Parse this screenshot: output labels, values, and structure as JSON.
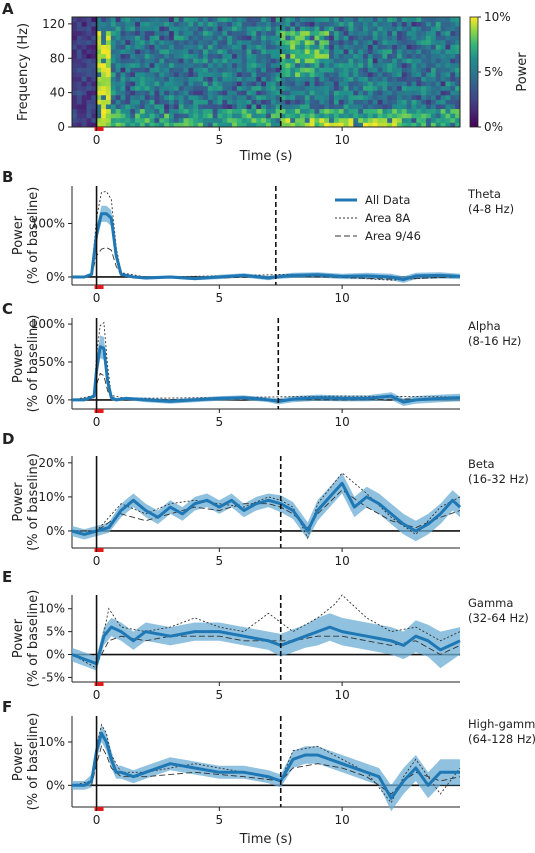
{
  "figure": {
    "shared_xlabel": "Time (s)",
    "shared_ylabel": [
      "Power",
      "(% of baseline)"
    ],
    "colors": {
      "all_data": "#1f77b4",
      "sem_band": "#6baed6",
      "area_lines": "#333333",
      "event_marker": "#e31a1c"
    }
  },
  "chart_data": [
    {
      "type": "heatmap",
      "panel": "A",
      "xlabel": "Time (s)",
      "ylabel": "Frequency (Hz)",
      "xlim": [
        -1,
        14.8
      ],
      "ylim": [
        0,
        128
      ],
      "xticks": [
        0,
        5,
        10
      ],
      "yticks": [
        0,
        40,
        80,
        120
      ],
      "colorbar": {
        "label": "Power",
        "ticks": [
          "0%",
          "5%",
          "10%"
        ],
        "colormap": "viridis",
        "range": [
          0,
          10
        ]
      },
      "events": [
        {
          "x": 0,
          "style": "solid"
        },
        {
          "x": 7.5,
          "style": "dashed"
        }
      ]
    },
    {
      "type": "line",
      "panel": "B",
      "band_label": [
        "Theta",
        "(4-8 Hz)"
      ],
      "xlim": [
        -1,
        14.8
      ],
      "ylim": [
        -15,
        170
      ],
      "xticks": [
        0,
        5,
        10
      ],
      "yticks": [
        0,
        100
      ],
      "ytick_labels": [
        "0%",
        "100%"
      ],
      "legend": {
        "placement": "top-right",
        "entries": [
          "All Data",
          "Area 8A",
          "Area 9/46"
        ]
      },
      "events": [
        {
          "x": 0,
          "style": "solid"
        },
        {
          "x": 7.3,
          "style": "dashed"
        }
      ],
      "series": [
        {
          "name": "All Data",
          "x": [
            -1,
            -0.5,
            -0.2,
            0,
            0.2,
            0.4,
            0.6,
            0.8,
            1.0,
            1.5,
            2,
            3,
            4,
            5,
            6,
            7,
            7.3,
            8,
            9,
            10,
            11,
            12,
            12.5,
            13,
            14,
            14.8
          ],
          "y": [
            0,
            0,
            5,
            80,
            118,
            118,
            110,
            40,
            5,
            0,
            -2,
            0,
            -3,
            0,
            3,
            -2,
            0,
            3,
            4,
            1,
            2,
            0,
            -5,
            2,
            3,
            1
          ],
          "sem": [
            1,
            1,
            3,
            15,
            15,
            15,
            15,
            10,
            3,
            2,
            3,
            3,
            3,
            4,
            4,
            4,
            4,
            5,
            5,
            5,
            6,
            6,
            6,
            6,
            6,
            5
          ]
        },
        {
          "name": "Area 8A",
          "x": [
            -1,
            -0.5,
            -0.2,
            0,
            0.2,
            0.4,
            0.6,
            0.8,
            1.0,
            2,
            5,
            8,
            12,
            14.8
          ],
          "y": [
            0,
            0,
            8,
            110,
            158,
            160,
            145,
            55,
            8,
            0,
            2,
            5,
            -6,
            2
          ]
        },
        {
          "name": "Area 9/46",
          "x": [
            -1,
            -0.5,
            -0.2,
            0,
            0.2,
            0.4,
            0.6,
            0.8,
            1.0,
            2,
            5,
            8,
            12,
            14.8
          ],
          "y": [
            0,
            0,
            4,
            40,
            52,
            55,
            50,
            20,
            3,
            0,
            -2,
            2,
            -4,
            0
          ]
        }
      ]
    },
    {
      "type": "line",
      "panel": "C",
      "band_label": [
        "Alpha",
        "(8-16 Hz)"
      ],
      "xlim": [
        -1,
        14.8
      ],
      "ylim": [
        -12,
        108
      ],
      "xticks": [
        0,
        5,
        10
      ],
      "yticks": [
        0,
        50,
        100
      ],
      "ytick_labels": [
        "0%",
        "50%",
        "100%"
      ],
      "events": [
        {
          "x": 0,
          "style": "solid"
        },
        {
          "x": 7.4,
          "style": "dashed"
        }
      ],
      "series": [
        {
          "name": "All Data",
          "x": [
            -1,
            -0.5,
            -0.1,
            0,
            0.15,
            0.3,
            0.45,
            0.6,
            0.8,
            1.2,
            2,
            3,
            4,
            5,
            6,
            7,
            7.4,
            8,
            9,
            10,
            11,
            12,
            12.5,
            13,
            14,
            14.8
          ],
          "y": [
            0,
            0,
            5,
            40,
            70,
            68,
            25,
            3,
            0,
            2,
            0,
            -2,
            0,
            2,
            3,
            0,
            -2,
            1,
            3,
            2,
            2,
            5,
            -3,
            0,
            2,
            3
          ],
          "sem": [
            1,
            1,
            3,
            15,
            15,
            15,
            10,
            3,
            2,
            2,
            3,
            3,
            3,
            3,
            3,
            3,
            4,
            4,
            4,
            4,
            4,
            5,
            5,
            5,
            5,
            5
          ]
        },
        {
          "name": "Area 8A",
          "x": [
            -1,
            -0.1,
            0,
            0.15,
            0.3,
            0.45,
            0.6,
            1.2,
            5,
            10,
            14.8
          ],
          "y": [
            0,
            6,
            60,
            98,
            102,
            45,
            6,
            2,
            3,
            5,
            4
          ]
        },
        {
          "name": "Area 9/46",
          "x": [
            -1,
            -0.1,
            0,
            0.15,
            0.3,
            0.45,
            0.6,
            1.2,
            5,
            10,
            14.8
          ],
          "y": [
            0,
            3,
            20,
            35,
            32,
            12,
            2,
            0,
            1,
            0,
            2
          ]
        }
      ]
    },
    {
      "type": "line",
      "panel": "D",
      "band_label": [
        "Beta",
        "(16-32 Hz)"
      ],
      "xlim": [
        -1,
        14.8
      ],
      "ylim": [
        -5,
        22
      ],
      "xticks": [
        0,
        5,
        10
      ],
      "yticks": [
        0,
        10,
        20
      ],
      "ytick_labels": [
        "0%",
        "10%",
        "20%"
      ],
      "events": [
        {
          "x": 0,
          "style": "solid"
        },
        {
          "x": 7.5,
          "style": "dashed"
        }
      ],
      "series": [
        {
          "name": "All Data",
          "x": [
            -1,
            -0.5,
            0,
            0.5,
            1,
            1.5,
            2,
            2.5,
            3,
            3.5,
            4,
            4.5,
            5,
            5.5,
            6,
            6.5,
            7,
            7.5,
            8,
            8.3,
            8.6,
            9,
            9.5,
            10,
            10.5,
            11,
            11.5,
            12,
            12.5,
            13,
            13.5,
            14,
            14.5,
            14.8
          ],
          "y": [
            0,
            -1,
            0,
            1,
            6,
            9,
            6,
            4,
            7,
            5,
            8,
            9,
            7,
            9,
            6,
            8,
            9,
            8,
            6,
            3,
            0,
            6,
            10,
            14,
            7,
            10,
            8,
            5,
            2,
            0,
            2,
            5,
            9,
            7
          ],
          "sem": [
            1.5,
            1.5,
            1.5,
            1.5,
            2,
            2,
            2,
            2,
            2,
            2,
            2,
            2,
            2,
            2,
            2,
            2,
            2,
            2.5,
            2.5,
            2.5,
            2.5,
            3,
            3,
            3,
            3,
            3,
            3,
            3,
            3,
            3,
            3,
            3,
            3,
            3
          ]
        },
        {
          "name": "Area 8A",
          "x": [
            -1,
            0,
            1,
            2,
            3,
            4,
            5,
            6,
            7,
            7.5,
            8,
            8.6,
            9,
            10,
            11,
            12,
            13,
            14,
            14.8
          ],
          "y": [
            0,
            0,
            8,
            5,
            8,
            9,
            8,
            7,
            10,
            9,
            7,
            -2,
            8,
            17,
            11,
            4,
            -1,
            7,
            10
          ]
        },
        {
          "name": "Area 9/46",
          "x": [
            -1,
            0,
            1,
            2,
            3,
            4,
            5,
            6,
            7,
            7.5,
            8,
            8.6,
            9,
            10,
            11,
            12,
            13,
            14,
            14.8
          ],
          "y": [
            0,
            0,
            5,
            3,
            5,
            7,
            6,
            8,
            8,
            7,
            5,
            1,
            5,
            12,
            7,
            3,
            1,
            4,
            6
          ]
        }
      ]
    },
    {
      "type": "line",
      "panel": "E",
      "band_label": [
        "Gamma",
        "(32-64 Hz)"
      ],
      "xlim": [
        -1,
        14.8
      ],
      "ylim": [
        -6,
        13
      ],
      "xticks": [
        0,
        5,
        10
      ],
      "yticks": [
        -5,
        0,
        5,
        10
      ],
      "ytick_labels": [
        "-5%",
        "0%",
        "5%",
        "10%"
      ],
      "events": [
        {
          "x": 0,
          "style": "solid"
        },
        {
          "x": 7.5,
          "style": "dashed"
        }
      ],
      "series": [
        {
          "name": "All Data",
          "x": [
            -1,
            -0.5,
            0,
            0.3,
            0.6,
            1,
            1.5,
            2,
            3,
            4,
            5,
            6,
            7,
            7.5,
            8,
            8.5,
            9,
            9.5,
            10,
            11,
            12,
            12.5,
            13,
            13.5,
            14,
            14.8
          ],
          "y": [
            0,
            -1,
            -2,
            4,
            6,
            5,
            3,
            5,
            4,
            5,
            5,
            4,
            3,
            2,
            3,
            4,
            5,
            6,
            5,
            4,
            3,
            2,
            4,
            3,
            1,
            3
          ],
          "sem": [
            1.5,
            1.5,
            1.5,
            2,
            2,
            2,
            2,
            2,
            2,
            2,
            2,
            2,
            2,
            2.5,
            2.5,
            2.5,
            3,
            3,
            3,
            3,
            3,
            3,
            3.5,
            3.5,
            4,
            3
          ]
        },
        {
          "name": "Area 8A",
          "x": [
            -1,
            0,
            0.5,
            1,
            2,
            3,
            4,
            5,
            6,
            7,
            8,
            9,
            9.7,
            10,
            11,
            12,
            13,
            14,
            14.8
          ],
          "y": [
            0,
            -3,
            10,
            6,
            5,
            6,
            8,
            6,
            5,
            9,
            5,
            8,
            11,
            13,
            8,
            5,
            6,
            3,
            5
          ]
        },
        {
          "name": "Area 9/46",
          "x": [
            -1,
            0,
            0.5,
            1,
            2,
            3,
            4,
            5,
            6,
            7,
            8,
            9,
            10,
            11,
            12,
            13,
            14,
            14.8
          ],
          "y": [
            0,
            -2,
            3,
            4,
            3,
            4,
            4,
            4,
            3,
            3,
            3,
            4,
            4,
            3,
            2,
            3,
            0,
            2
          ]
        }
      ]
    },
    {
      "type": "line",
      "panel": "F",
      "band_label": [
        "High-gamma",
        "(64-128 Hz)"
      ],
      "xlim": [
        -1,
        14.8
      ],
      "ylim": [
        -5,
        16
      ],
      "xticks": [
        0,
        5,
        10
      ],
      "yticks": [
        0,
        10
      ],
      "ytick_labels": [
        "0%",
        "10%"
      ],
      "xlabel": "Time (s)",
      "events": [
        {
          "x": 0,
          "style": "solid"
        },
        {
          "x": 7.5,
          "style": "dashed"
        }
      ],
      "series": [
        {
          "name": "All Data",
          "x": [
            -1,
            -0.5,
            -0.2,
            0,
            0.2,
            0.4,
            0.6,
            0.8,
            1,
            1.5,
            2,
            3,
            4,
            5,
            6,
            7,
            7.5,
            8,
            8.5,
            9,
            10,
            11,
            11.5,
            12,
            12.5,
            13,
            13.5,
            14,
            14.8
          ],
          "y": [
            0,
            0,
            1,
            8,
            12,
            10,
            6,
            3,
            3,
            2,
            3,
            5,
            4,
            3,
            3,
            2,
            1,
            6,
            7,
            7,
            5,
            3,
            2,
            -3,
            1,
            4,
            0,
            3,
            3
          ],
          "sem": [
            1,
            1,
            1.5,
            2,
            2,
            2,
            2,
            1.5,
            1.5,
            1.5,
            1.5,
            1.5,
            1.5,
            1.5,
            1.5,
            1.5,
            1.5,
            2,
            2,
            2,
            2,
            2,
            2,
            3,
            3,
            3,
            3,
            3,
            3
          ]
        },
        {
          "name": "Area 8A",
          "x": [
            -1,
            -0.2,
            0,
            0.2,
            0.4,
            0.6,
            1,
            2,
            4,
            6,
            7.5,
            8,
            9,
            10,
            11,
            12,
            12.5,
            13,
            14,
            14.8
          ],
          "y": [
            0,
            1,
            9,
            14,
            12,
            7,
            3,
            3,
            5,
            3,
            1,
            8,
            9,
            6,
            3,
            -4,
            2,
            6,
            -2,
            4
          ]
        },
        {
          "name": "Area 9/46",
          "x": [
            -1,
            -0.2,
            0,
            0.2,
            0.4,
            0.6,
            1,
            2,
            4,
            6,
            7.5,
            8,
            9,
            10,
            11,
            12,
            12.5,
            13,
            14,
            14.8
          ],
          "y": [
            0,
            0,
            5,
            9,
            7,
            4,
            2,
            2,
            3,
            2,
            1,
            4,
            5,
            4,
            2,
            -2,
            1,
            3,
            1,
            2
          ]
        }
      ]
    }
  ]
}
